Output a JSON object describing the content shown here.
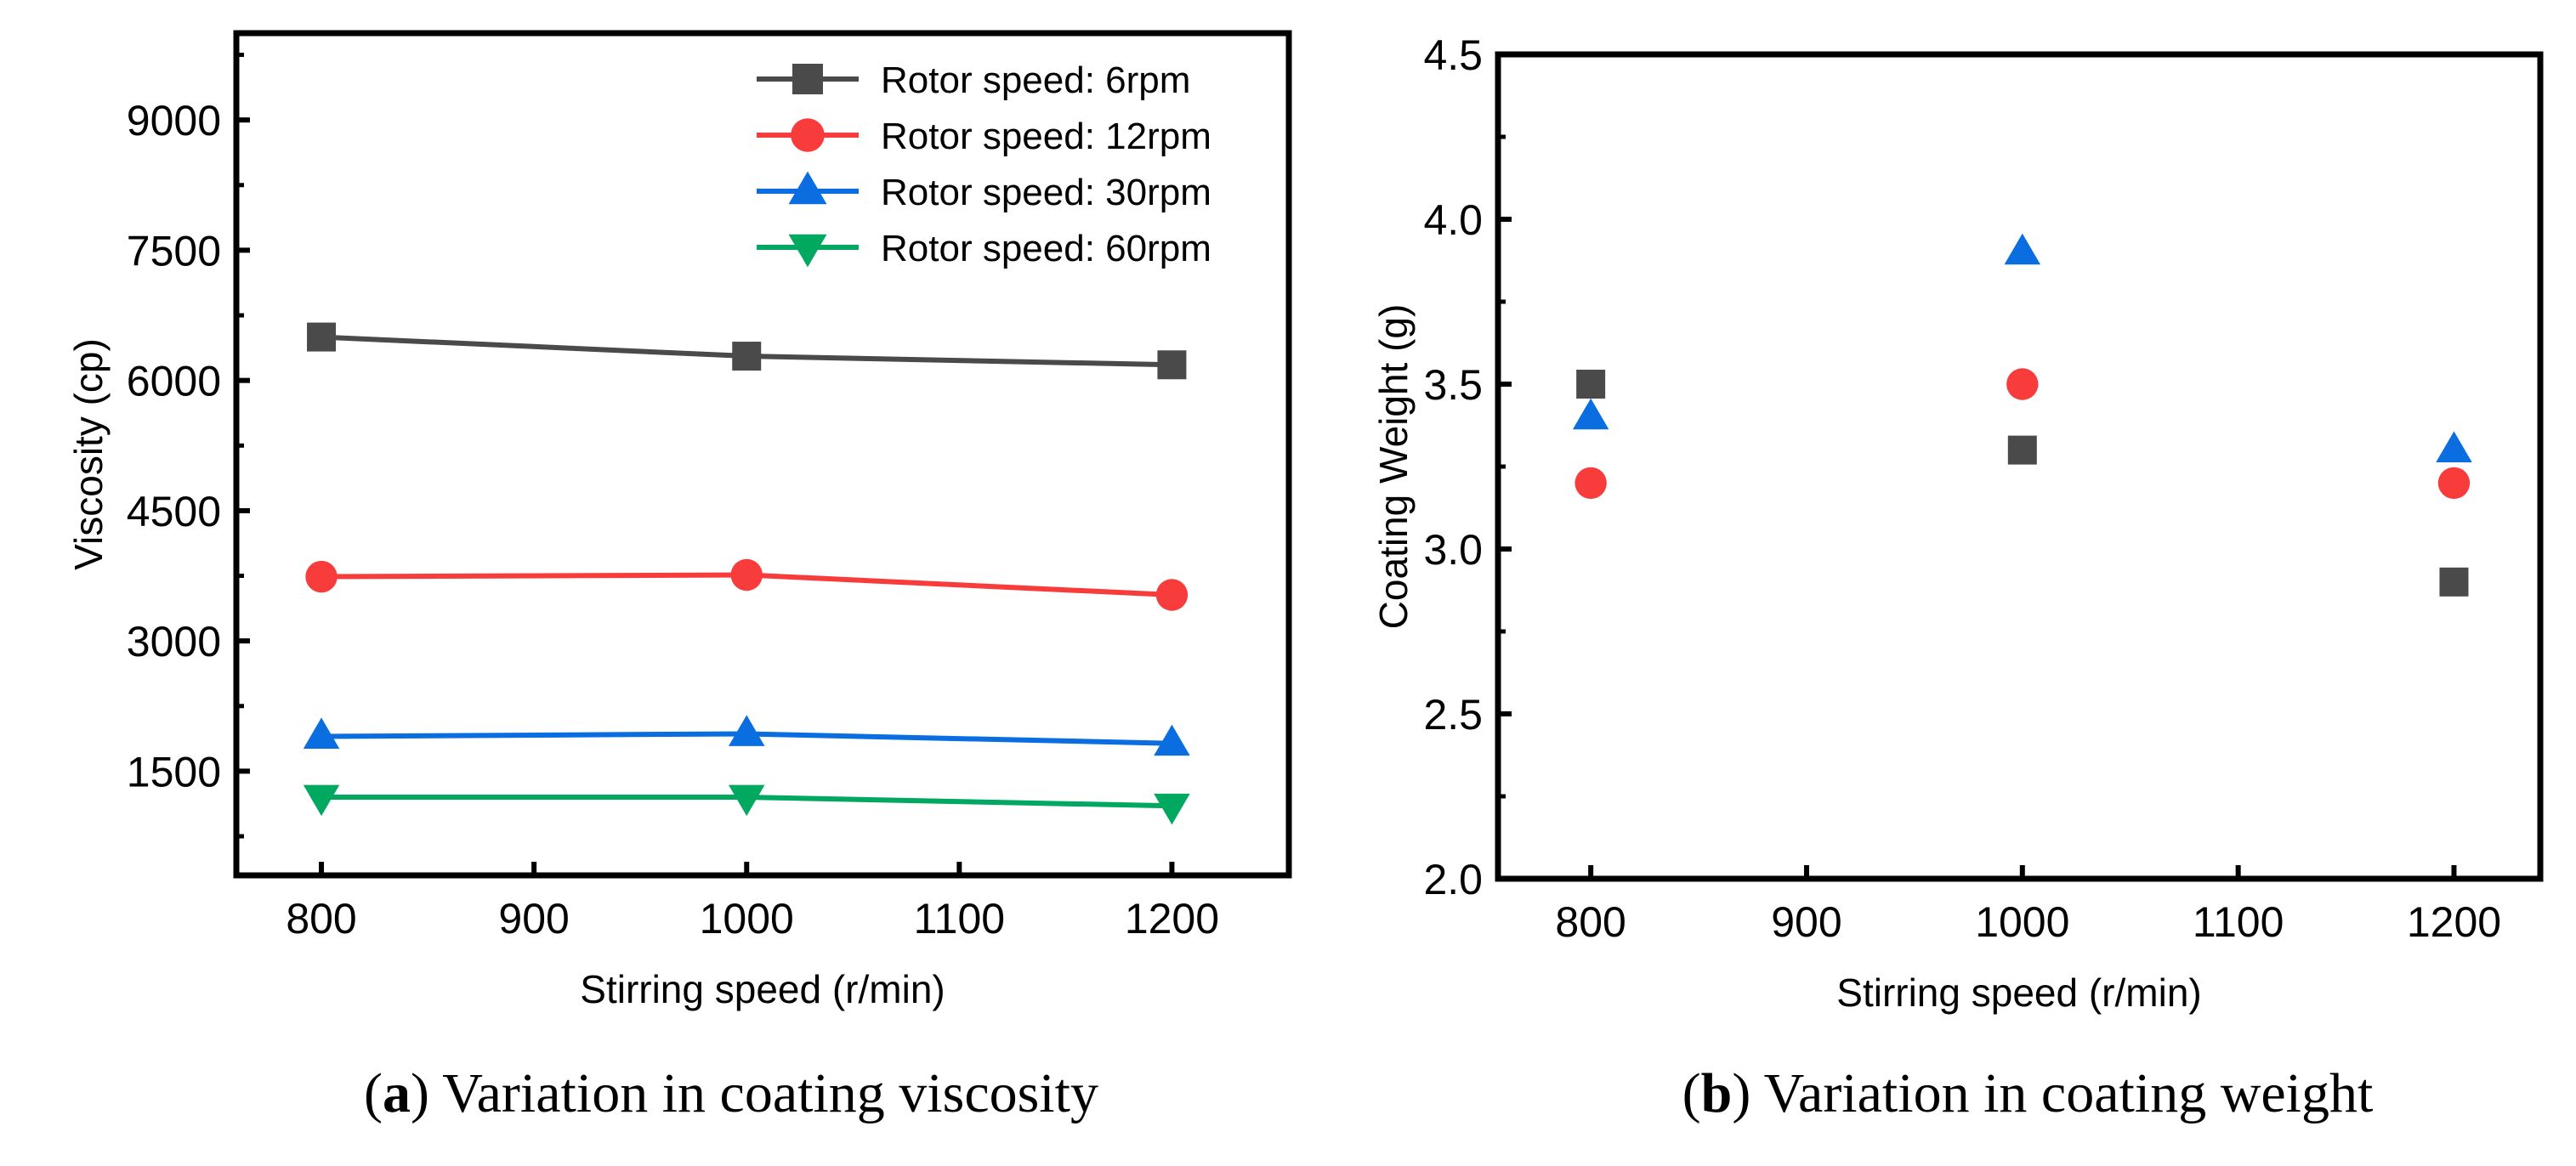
{
  "chart_data": [
    {
      "type": "line",
      "panel": "a",
      "caption_letter": "a",
      "caption": "Variation in coating viscosity",
      "xlabel": "Stirring speed (r/min)",
      "ylabel": "Viscosity (cp)",
      "x": [
        800,
        1000,
        1200
      ],
      "xticks": [
        800,
        900,
        1000,
        1100,
        1200
      ],
      "yticks": [
        1500,
        3000,
        4500,
        6000,
        7500,
        9000
      ],
      "xlim": [
        760,
        1255
      ],
      "ylim": [
        300,
        10000
      ],
      "grid": false,
      "legend_position": "top-right",
      "series": [
        {
          "name": "Rotor speed: 6rpm",
          "marker": "square",
          "color": "#4a4a4a",
          "values": [
            6500,
            6280,
            6180
          ]
        },
        {
          "name": "Rotor speed: 12rpm",
          "marker": "circle",
          "color": "#f83c3c",
          "values": [
            3740,
            3760,
            3530
          ]
        },
        {
          "name": "Rotor speed: 30rpm",
          "marker": "triangle-up",
          "color": "#0a6ee0",
          "values": [
            1900,
            1930,
            1820
          ]
        },
        {
          "name": "Rotor speed: 60rpm",
          "marker": "triangle-down",
          "color": "#00a860",
          "values": [
            1200,
            1200,
            1100
          ]
        }
      ]
    },
    {
      "type": "scatter",
      "panel": "b",
      "caption_letter": "b",
      "caption": "Variation in coating weight",
      "xlabel": "Stirring speed (r/min)",
      "ylabel": "Coating Weight (g)",
      "x": [
        800,
        1000,
        1200
      ],
      "xticks": [
        800,
        900,
        1000,
        1100,
        1200
      ],
      "yticks": [
        "2.0",
        "2.5",
        "3.0",
        "3.5",
        "4.0",
        "4.5"
      ],
      "xlim": [
        757,
        1240
      ],
      "ylim": [
        2.0,
        4.5
      ],
      "grid": false,
      "series": [
        {
          "marker": "square",
          "color": "#4a4a4a",
          "values": [
            3.5,
            3.3,
            2.9
          ]
        },
        {
          "marker": "circle",
          "color": "#f83c3c",
          "values": [
            3.2,
            3.5,
            3.2
          ]
        },
        {
          "marker": "triangle-up",
          "color": "#0a6ee0",
          "values": [
            3.4,
            3.9,
            3.3
          ]
        }
      ]
    }
  ]
}
